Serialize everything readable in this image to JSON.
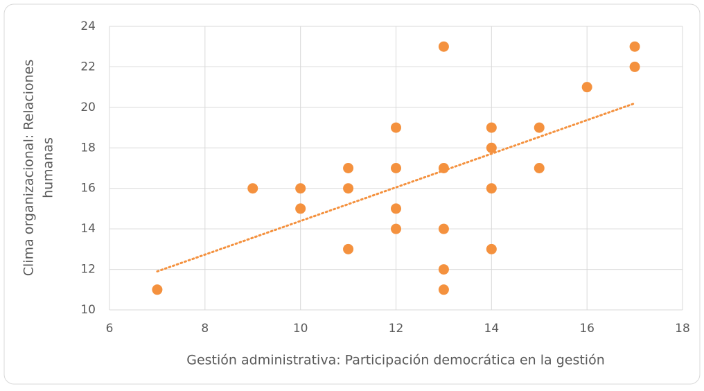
{
  "chart_data": {
    "type": "scatter",
    "xlabel": "Gestión administrativa: Participación democrática en la gestión",
    "ylabel": [
      "Clima organizacional: Relaciones",
      "humanas"
    ],
    "x": [
      7,
      9,
      10,
      10,
      11,
      11,
      11,
      12,
      12,
      12,
      12,
      13,
      13,
      13,
      13,
      13,
      14,
      14,
      14,
      14,
      15,
      15,
      16,
      17,
      17
    ],
    "values": [
      11,
      16,
      16,
      15,
      17,
      16,
      13,
      19,
      17,
      15,
      14,
      23,
      17,
      14,
      12,
      11,
      19,
      18,
      16,
      13,
      19,
      17,
      21,
      23,
      22
    ],
    "color": "#f4913e",
    "trendline": {
      "x": [
        7,
        17
      ],
      "values": [
        11.9,
        20.2
      ]
    },
    "xlim": [
      6,
      18
    ],
    "xticks": [
      6,
      8,
      10,
      12,
      14,
      16,
      18
    ],
    "ylim": [
      10,
      24
    ],
    "yticks": [
      10,
      12,
      14,
      16,
      18,
      20,
      22,
      24
    ],
    "grid": true
  }
}
